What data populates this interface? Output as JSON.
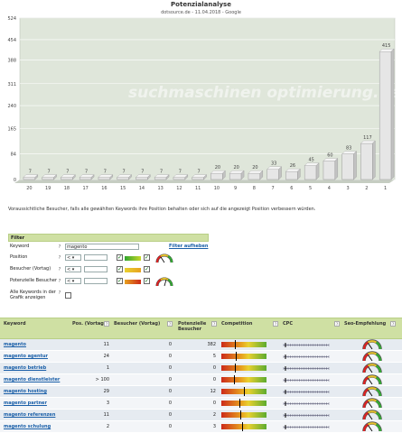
{
  "chart_data": {
    "type": "bar",
    "title": "Potenzialanalyse",
    "subtitle": "dotsource.de - 11.04.2018 - Google",
    "watermark": "suchmaschinen optimierung.de",
    "categories": [
      "20",
      "19",
      "18",
      "17",
      "16",
      "15",
      "14",
      "13",
      "12",
      "11",
      "10",
      "9",
      "8",
      "7",
      "6",
      "5",
      "4",
      "3",
      "2",
      "1"
    ],
    "values": [
      7,
      7,
      7,
      7,
      7,
      7,
      7,
      7,
      7,
      7,
      20,
      20,
      20,
      33,
      26,
      45,
      60,
      83,
      117,
      415
    ],
    "value_labels": [
      "7",
      "7",
      "7",
      "7",
      "7",
      "7",
      "7",
      "7",
      "7",
      "7",
      "20",
      "20",
      "20",
      "33",
      "26",
      "45",
      "60",
      "83",
      "117",
      "415"
    ],
    "y_ticks": [
      "524",
      "454",
      "388",
      "311",
      "240",
      "165",
      "84",
      "0"
    ],
    "y_tick_values": [
      524,
      454,
      388,
      311,
      240,
      165,
      84,
      0
    ],
    "ylim": [
      0,
      524
    ],
    "grid": true,
    "bar_color": "#e6e6e6",
    "plot_bg": "#dfe6da"
  },
  "note": "Voraussichtliche Besucher, falls alle gewählten Keywords ihre Position behalten oder sich auf die angezeigt Position verbessern würden.",
  "filter": {
    "title": "Filter",
    "reset_link": "Filter aufheben",
    "rows": [
      {
        "label": "Keyword",
        "value": "magento"
      },
      {
        "label": "Position",
        "operator": "<"
      },
      {
        "label": "Besucher (Vortag)",
        "operator": "<"
      },
      {
        "label": "Potenzielle Besucher",
        "operator": "<"
      },
      {
        "label": "Alle Keywords in der Grafik anzeigen"
      }
    ],
    "help": "?",
    "checked_mark": "✓",
    "go": "»"
  },
  "table": {
    "headers": [
      "Keyword",
      "Pos. (Vortag)",
      "Besucher (Vortag)",
      "Potenzielle Besucher",
      "Competition",
      "CPC",
      "Seo-Empfehlung"
    ],
    "help": "?",
    "rows": [
      {
        "keyword": "magento",
        "pos": "11",
        "visitors": "0",
        "potential": "382",
        "comp": 0.3
      },
      {
        "keyword": "magento agentur",
        "pos": "24",
        "visitors": "0",
        "potential": "5",
        "comp": 0.32
      },
      {
        "keyword": "magento betrieb",
        "pos": "1",
        "visitors": "0",
        "potential": "0",
        "comp": 0.3
      },
      {
        "keyword": "magento dienstleister",
        "pos": "> 100",
        "visitors": "0",
        "potential": "0",
        "comp": 0.28
      },
      {
        "keyword": "magento hosting",
        "pos": "29",
        "visitors": "0",
        "potential": "12",
        "comp": 0.5
      },
      {
        "keyword": "magento partner",
        "pos": "3",
        "visitors": "0",
        "potential": "0",
        "comp": 0.4
      },
      {
        "keyword": "magento referenzen",
        "pos": "11",
        "visitors": "0",
        "potential": "2",
        "comp": 0.42
      },
      {
        "keyword": "magento schulung",
        "pos": "2",
        "visitors": "0",
        "potential": "3",
        "comp": 0.45
      }
    ]
  }
}
